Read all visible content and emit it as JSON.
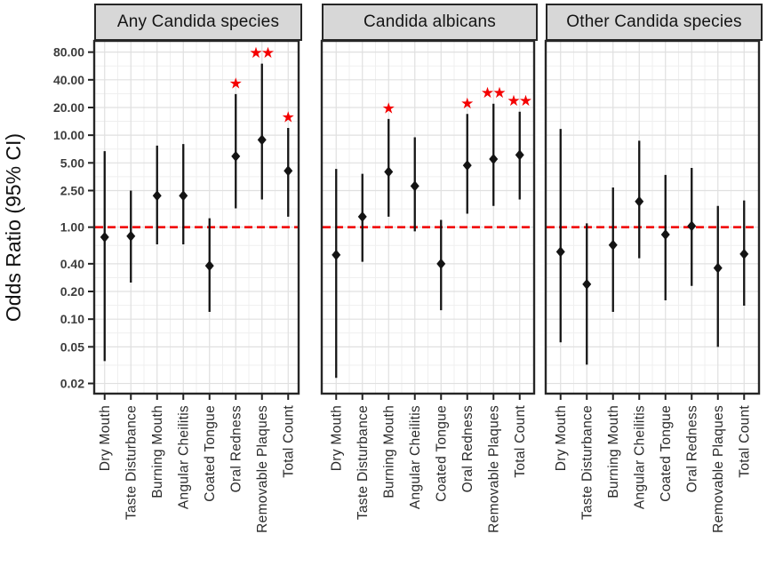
{
  "figure": {
    "ylabel": "Odds Ratio (95% CI)"
  },
  "chart_data": {
    "type": "scatter",
    "subtype": "forest-plot-with-error-bars",
    "title": "",
    "xlabel": "",
    "ylabel": "Odds Ratio (95% CI)",
    "yscale": "log",
    "ylim": [
      0.0155,
      106
    ],
    "grid": "on",
    "legend": "none",
    "yticks": {
      "values": [
        80,
        40,
        20,
        10,
        5,
        2.5,
        1,
        0.4,
        0.2,
        0.1,
        0.05,
        0.02
      ],
      "labels": [
        "80.00",
        "40.00",
        "20.00",
        "10.00",
        "5.00",
        "2.50",
        "1.00",
        "0.40",
        "0.20",
        "0.10",
        "0.05",
        "0.02"
      ]
    },
    "reference_line": {
      "y": 1.0,
      "style": "dashed",
      "color": "#f10000"
    },
    "colors": {
      "point": "#141414",
      "ci_line": "#141414",
      "star": "#f40000",
      "grid_major": "#e0e0e0",
      "grid_minor": "#efefef",
      "panel_border": "#262626",
      "strip_bg": "#d7d7d7"
    },
    "categories": [
      "Dry Mouth",
      "Taste Disturbance",
      "Burning Mouth",
      "Angular Cheilitis",
      "Coated Tongue",
      "Oral Redness",
      "Removable Plaques",
      "Total Count"
    ],
    "panels": [
      {
        "title": "Any Candida species",
        "points": [
          {
            "category": "Dry Mouth",
            "or": 0.78,
            "ci_low": 0.035,
            "ci_high": 6.7,
            "sig": ""
          },
          {
            "category": "Taste Disturbance",
            "or": 0.8,
            "ci_low": 0.25,
            "ci_high": 2.5,
            "sig": ""
          },
          {
            "category": "Burning Mouth",
            "or": 2.2,
            "ci_low": 0.65,
            "ci_high": 7.7,
            "sig": ""
          },
          {
            "category": "Angular Cheilitis",
            "or": 2.2,
            "ci_low": 0.65,
            "ci_high": 8.0,
            "sig": ""
          },
          {
            "category": "Coated Tongue",
            "or": 0.38,
            "ci_low": 0.12,
            "ci_high": 1.25,
            "sig": ""
          },
          {
            "category": "Oral Redness",
            "or": 5.9,
            "ci_low": 1.6,
            "ci_high": 28,
            "sig": "*"
          },
          {
            "category": "Removable Plaques",
            "or": 8.9,
            "ci_low": 2.0,
            "ci_high": 60,
            "sig": "**"
          },
          {
            "category": "Total Count",
            "or": 4.1,
            "ci_low": 1.3,
            "ci_high": 12,
            "sig": "*"
          }
        ]
      },
      {
        "title": "Candida albicans",
        "points": [
          {
            "category": "Dry Mouth",
            "or": 0.5,
            "ci_low": 0.023,
            "ci_high": 4.3,
            "sig": ""
          },
          {
            "category": "Taste Disturbance",
            "or": 1.3,
            "ci_low": 0.42,
            "ci_high": 3.8,
            "sig": ""
          },
          {
            "category": "Burning Mouth",
            "or": 4.0,
            "ci_low": 1.3,
            "ci_high": 15,
            "sig": "*"
          },
          {
            "category": "Angular Cheilitis",
            "or": 2.8,
            "ci_low": 0.9,
            "ci_high": 9.5,
            "sig": ""
          },
          {
            "category": "Coated Tongue",
            "or": 0.4,
            "ci_low": 0.125,
            "ci_high": 1.2,
            "sig": ""
          },
          {
            "category": "Oral Redness",
            "or": 4.7,
            "ci_low": 1.4,
            "ci_high": 17,
            "sig": "*"
          },
          {
            "category": "Removable Plaques",
            "or": 5.5,
            "ci_low": 1.7,
            "ci_high": 22,
            "sig": "**"
          },
          {
            "category": "Total Count",
            "or": 6.1,
            "ci_low": 2.0,
            "ci_high": 18,
            "sig": "**"
          }
        ]
      },
      {
        "title": "Other Candida species",
        "points": [
          {
            "category": "Dry Mouth",
            "or": 0.54,
            "ci_low": 0.056,
            "ci_high": 11.7,
            "sig": ""
          },
          {
            "category": "Taste Disturbance",
            "or": 0.24,
            "ci_low": 0.032,
            "ci_high": 1.1,
            "sig": ""
          },
          {
            "category": "Burning Mouth",
            "or": 0.64,
            "ci_low": 0.12,
            "ci_high": 2.7,
            "sig": ""
          },
          {
            "category": "Angular Cheilitis",
            "or": 1.9,
            "ci_low": 0.46,
            "ci_high": 8.7,
            "sig": ""
          },
          {
            "category": "Coated Tongue",
            "or": 0.83,
            "ci_low": 0.16,
            "ci_high": 3.7,
            "sig": ""
          },
          {
            "category": "Oral Redness",
            "or": 1.03,
            "ci_low": 0.23,
            "ci_high": 4.4,
            "sig": ""
          },
          {
            "category": "Removable Plaques",
            "or": 0.36,
            "ci_low": 0.05,
            "ci_high": 1.7,
            "sig": ""
          },
          {
            "category": "Total Count",
            "or": 0.51,
            "ci_low": 0.14,
            "ci_high": 1.95,
            "sig": ""
          }
        ]
      }
    ]
  }
}
